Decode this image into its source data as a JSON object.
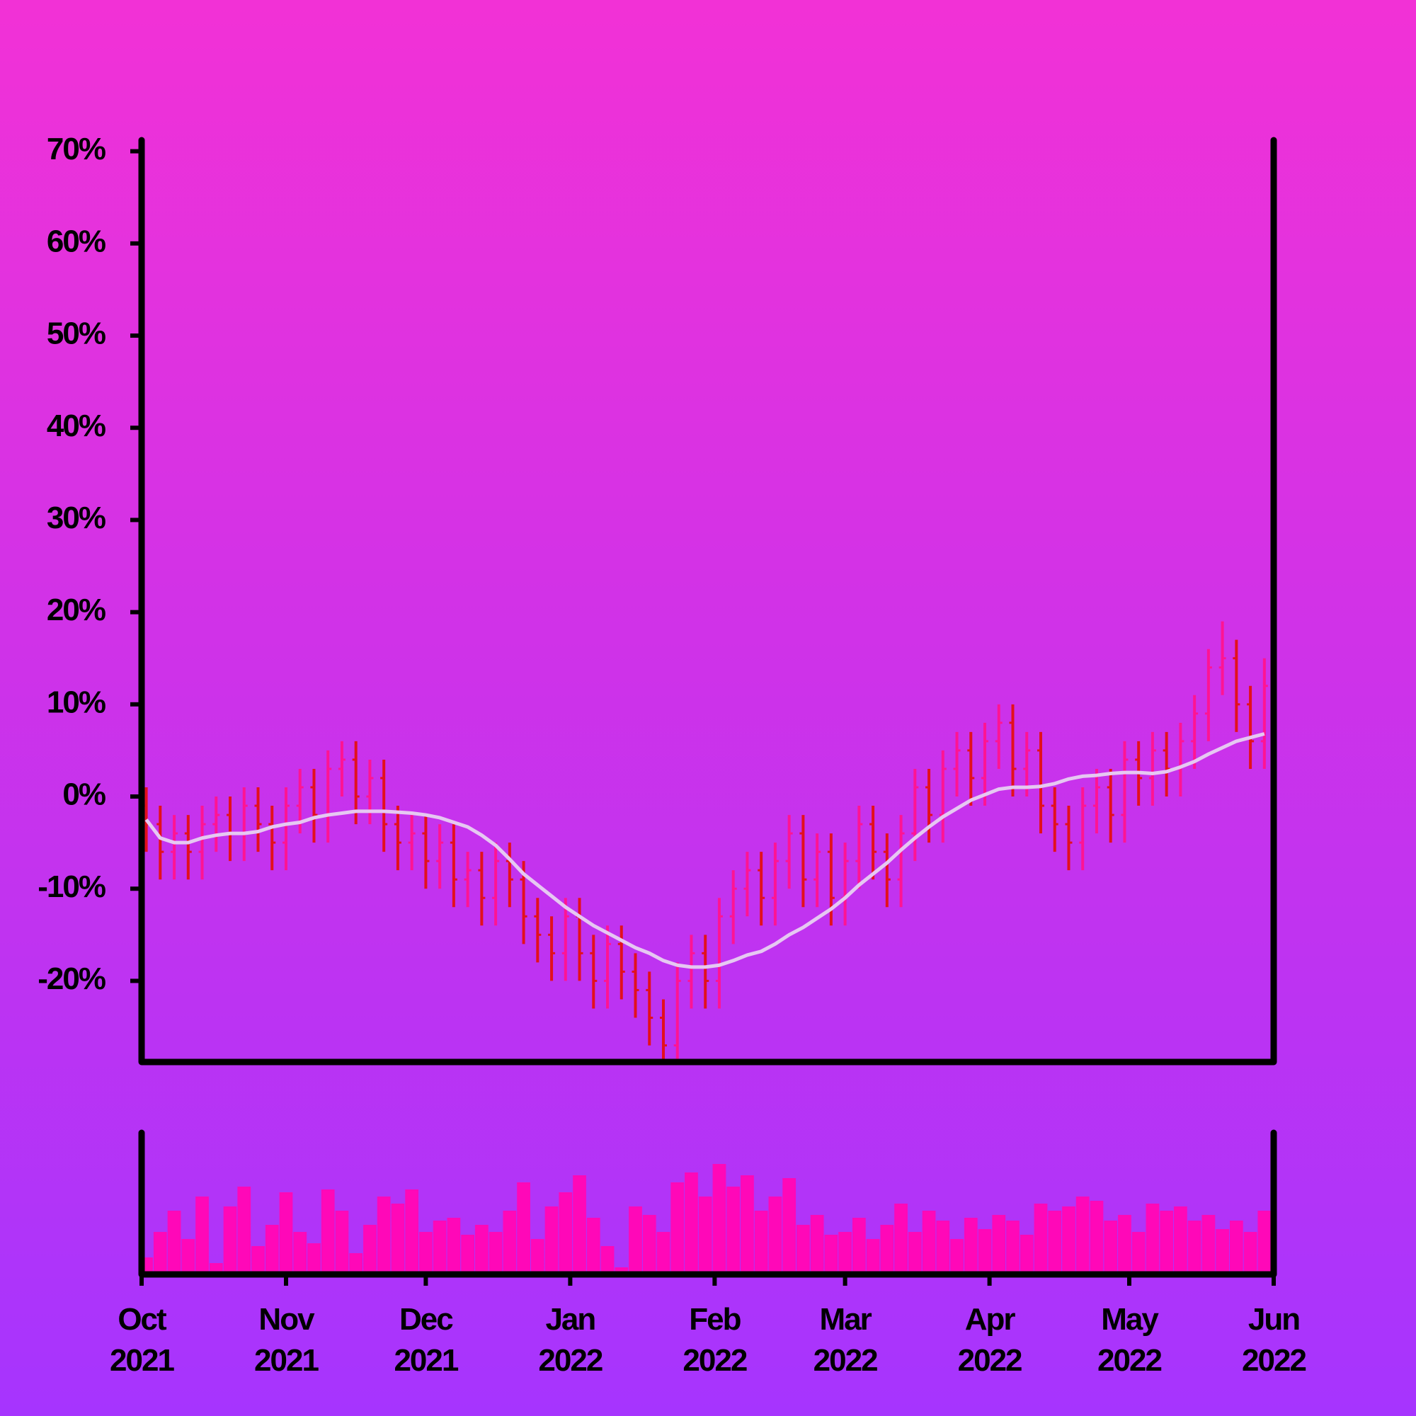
{
  "chart_data": {
    "type": "ohlc",
    "x": [
      1,
      4,
      7,
      10,
      13,
      16,
      19,
      22,
      25,
      28,
      31,
      34,
      37,
      40,
      43,
      46,
      49,
      52,
      55,
      58,
      61,
      64,
      67,
      70,
      73,
      76,
      79,
      82,
      85,
      88,
      91,
      94,
      97,
      100,
      103,
      106,
      109,
      112,
      115,
      118,
      121,
      124,
      127,
      130,
      133,
      136,
      139,
      142,
      145,
      148,
      151,
      154,
      157,
      160,
      163,
      166,
      169,
      172,
      175,
      178,
      181,
      184,
      187,
      190,
      193,
      196,
      199,
      202,
      205,
      208,
      211,
      214,
      217,
      220,
      223,
      226,
      229,
      232,
      235,
      238,
      241
    ],
    "open": [
      -1,
      -3,
      -6,
      -4,
      -6,
      -3,
      -2,
      -4,
      -1,
      -3,
      -5,
      -1,
      1,
      -2,
      3,
      4,
      0,
      2,
      -3,
      -5,
      -4,
      -7,
      -5,
      -9,
      -8,
      -11,
      -7,
      -9,
      -13,
      -15,
      -17,
      -13,
      -17,
      -20,
      -16,
      -19,
      -21,
      -24,
      -27,
      -20,
      -17,
      -20,
      -13,
      -10,
      -8,
      -11,
      -7,
      -4,
      -9,
      -6,
      -11,
      -7,
      -3,
      -6,
      -9,
      -4,
      1,
      -2,
      3,
      5,
      2,
      6,
      8,
      3,
      5,
      -1,
      -3,
      -5,
      -1,
      1,
      -2,
      4,
      2,
      5,
      3,
      6,
      9,
      14,
      15,
      10,
      6
    ],
    "high": [
      1,
      -1,
      -2,
      -2,
      -1,
      0,
      0,
      1,
      1,
      -1,
      1,
      3,
      3,
      5,
      6,
      6,
      4,
      4,
      -1,
      -2,
      -2,
      -3,
      -3,
      -6,
      -6,
      -5,
      -5,
      -7,
      -11,
      -13,
      -11,
      -11,
      -15,
      -14,
      -14,
      -17,
      -19,
      -22,
      -18,
      -15,
      -15,
      -11,
      -8,
      -6,
      -6,
      -5,
      -2,
      -2,
      -4,
      -4,
      -5,
      -1,
      -1,
      -4,
      -2,
      3,
      3,
      5,
      7,
      7,
      8,
      10,
      10,
      7,
      7,
      1,
      -1,
      1,
      3,
      3,
      6,
      6,
      7,
      7,
      8,
      11,
      16,
      19,
      17,
      12,
      15
    ],
    "low": [
      -6,
      -9,
      -9,
      -9,
      -9,
      -6,
      -7,
      -7,
      -6,
      -8,
      -8,
      -4,
      -5,
      -5,
      0,
      -3,
      -3,
      -6,
      -8,
      -8,
      -10,
      -10,
      -12,
      -12,
      -14,
      -14,
      -12,
      -16,
      -18,
      -20,
      -20,
      -20,
      -23,
      -23,
      -22,
      -24,
      -27,
      -28.5,
      -28.5,
      -23,
      -23,
      -23,
      -16,
      -13,
      -14,
      -14,
      -10,
      -12,
      -12,
      -14,
      -14,
      -10,
      -9,
      -12,
      -12,
      -7,
      -5,
      -5,
      0,
      -1,
      -1,
      3,
      0,
      0,
      -4,
      -6,
      -8,
      -8,
      -4,
      -5,
      -5,
      -1,
      -1,
      0,
      0,
      3,
      6,
      11,
      7,
      3,
      3
    ],
    "close": [
      -3,
      -6,
      -4,
      -6,
      -3,
      -2,
      -4,
      -1,
      -3,
      -5,
      -1,
      1,
      -2,
      3,
      4,
      0,
      2,
      -3,
      -5,
      -4,
      -7,
      -5,
      -9,
      -8,
      -11,
      -7,
      -9,
      -13,
      -15,
      -17,
      -13,
      -17,
      -20,
      -16,
      -19,
      -21,
      -24,
      -27,
      -20,
      -17,
      -20,
      -13,
      -10,
      -8,
      -11,
      -7,
      -4,
      -9,
      -6,
      -11,
      -7,
      -3,
      -6,
      -9,
      -4,
      1,
      -2,
      3,
      5,
      2,
      6,
      8,
      3,
      5,
      -1,
      -3,
      -5,
      -1,
      1,
      -2,
      4,
      2,
      5,
      3,
      6,
      9,
      14,
      15,
      10,
      6,
      12
    ],
    "ma": [
      -2.5,
      -4.5,
      -5,
      -5,
      -4.5,
      -4.2,
      -4,
      -4,
      -3.8,
      -3.3,
      -3,
      -2.8,
      -2.3,
      -2,
      -1.8,
      -1.6,
      -1.6,
      -1.6,
      -1.7,
      -1.8,
      -2,
      -2.3,
      -2.8,
      -3.3,
      -4.2,
      -5.3,
      -6.8,
      -8.4,
      -9.6,
      -10.8,
      -12,
      -13,
      -14,
      -14.8,
      -15.6,
      -16.4,
      -17,
      -17.8,
      -18.3,
      -18.5,
      -18.5,
      -18.3,
      -17.8,
      -17.2,
      -16.8,
      -16,
      -15,
      -14.2,
      -13.2,
      -12.2,
      -11,
      -9.6,
      -8.4,
      -7.2,
      -5.8,
      -4.5,
      -3.3,
      -2.2,
      -1.3,
      -0.4,
      0.2,
      0.8,
      1,
      1,
      1.1,
      1.4,
      1.9,
      2.2,
      2.3,
      2.5,
      2.6,
      2.6,
      2.5,
      2.7,
      3.2,
      3.8,
      4.6,
      5.3,
      6,
      6.4,
      6.8
    ],
    "volume": [
      12,
      30,
      45,
      25,
      55,
      8,
      48,
      62,
      20,
      35,
      58,
      30,
      22,
      60,
      45,
      15,
      35,
      55,
      50,
      60,
      30,
      38,
      40,
      28,
      35,
      30,
      45,
      65,
      25,
      48,
      58,
      70,
      40,
      20,
      5,
      48,
      42,
      30,
      65,
      72,
      55,
      78,
      62,
      70,
      45,
      55,
      68,
      35,
      42,
      28,
      30,
      40,
      25,
      35,
      50,
      30,
      45,
      38,
      25,
      40,
      32,
      42,
      38,
      28,
      50,
      45,
      48,
      55,
      52,
      38,
      42,
      30,
      50,
      45,
      48,
      38,
      42,
      32,
      38,
      30,
      45
    ],
    "up_color": "#ff1493",
    "down_color": "#e3101c",
    "ma_color": "#e6c8f2",
    "volume_color": "#ff08b8",
    "xlim": [
      0,
      243
    ],
    "xticks": [
      {
        "value": 0,
        "label": "Oct\n2021"
      },
      {
        "value": 31,
        "label": "Nov\n2021"
      },
      {
        "value": 61,
        "label": "Dec\n2021"
      },
      {
        "value": 92,
        "label": "Jan\n2022"
      },
      {
        "value": 123,
        "label": "Feb\n2022"
      },
      {
        "value": 151,
        "label": "Mar\n2022"
      },
      {
        "value": 182,
        "label": "Apr\n2022"
      },
      {
        "value": 212,
        "label": "May\n2022"
      },
      {
        "value": 243,
        "label": "Jun\n2022"
      }
    ],
    "ylim": [
      -28.8,
      71.2
    ],
    "yticks": [
      {
        "value": -20,
        "label": "-20%"
      },
      {
        "value": -10,
        "label": "-10%"
      },
      {
        "value": 0,
        "label": "0%"
      },
      {
        "value": 10,
        "label": "10%"
      },
      {
        "value": 20,
        "label": "20%"
      },
      {
        "value": 30,
        "label": "30%"
      },
      {
        "value": 40,
        "label": "40%"
      },
      {
        "value": 50,
        "label": "50%"
      },
      {
        "value": 60,
        "label": "60%"
      },
      {
        "value": 70,
        "label": "70%"
      }
    ],
    "volume_lim": [
      0,
      100
    ]
  }
}
